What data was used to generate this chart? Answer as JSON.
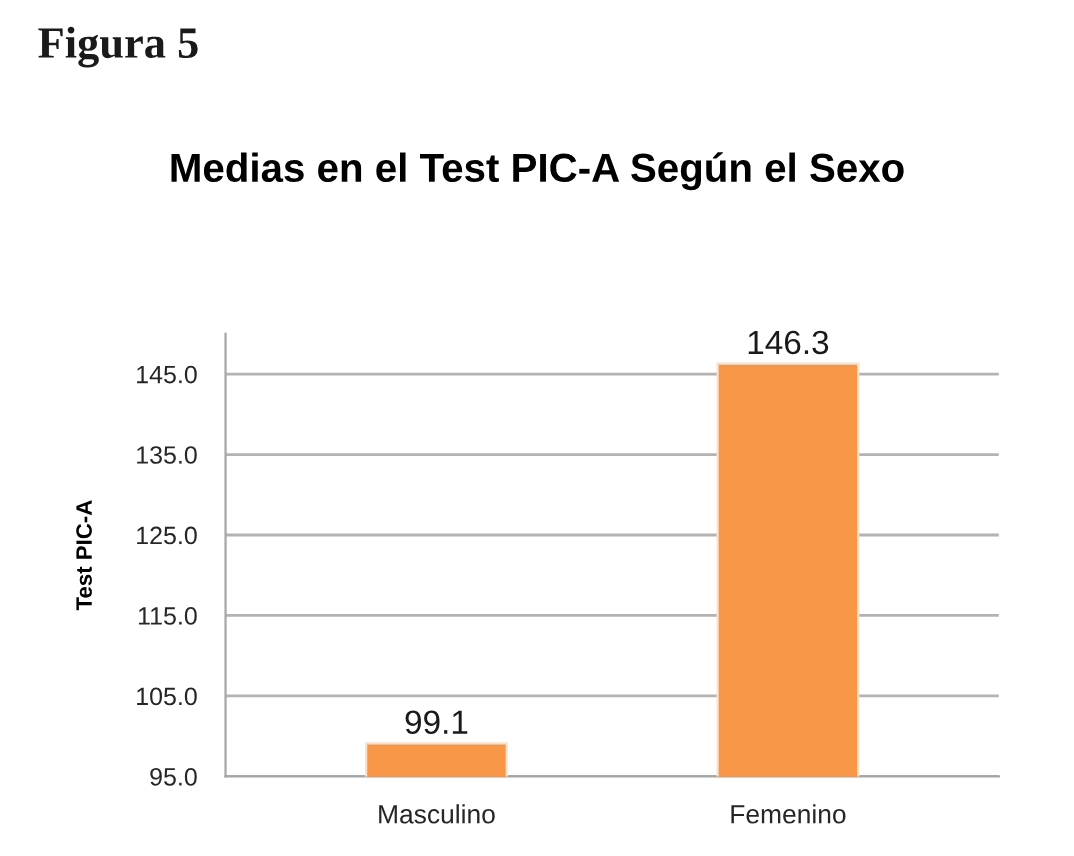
{
  "chart_data": {
    "type": "bar",
    "title": "Medias en el Test PIC-A Según el Sexo",
    "ylabel": "Test PIC-A",
    "annotations": [
      "Figura 5"
    ],
    "categories": [
      "Masculino",
      "Femenino"
    ],
    "values": [
      99.1,
      146.3
    ],
    "color": "#f79646",
    "ylim": [
      95,
      150
    ],
    "yticks": [
      {
        "value": 95,
        "label": "95.0"
      },
      {
        "value": 105,
        "label": "105.0"
      },
      {
        "value": 115,
        "label": "115.0"
      },
      {
        "value": 125,
        "label": "125.0"
      },
      {
        "value": 135,
        "label": "135.0"
      },
      {
        "value": 145,
        "label": "145.0"
      }
    ],
    "grid": "y",
    "data_labels": true
  }
}
